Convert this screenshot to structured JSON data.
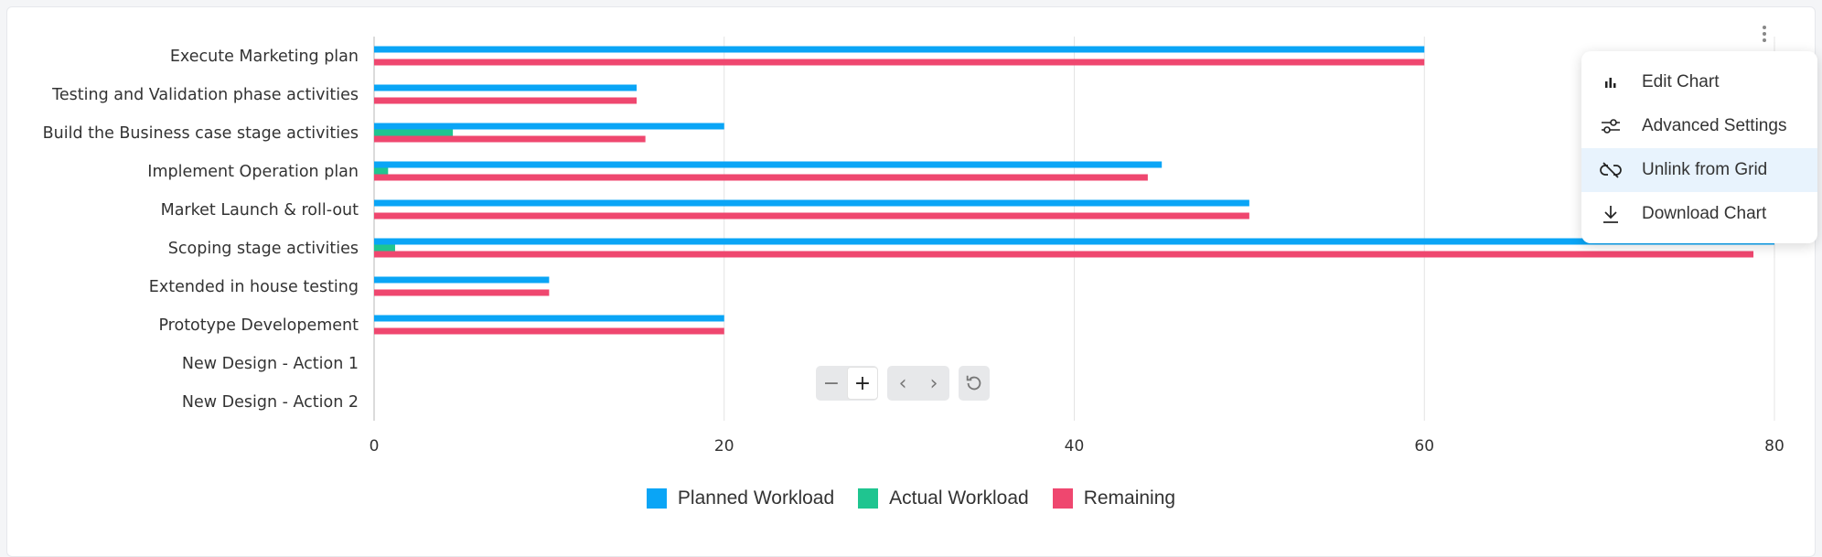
{
  "chart_data": {
    "type": "bar",
    "orientation": "horizontal",
    "categories": [
      "Execute Marketing plan",
      "Testing and Validation phase activities",
      "Build the Business case stage activities",
      "Implement Operation plan",
      "Market Launch & roll-out",
      "Scoping stage activities",
      "Extended in house testing",
      "Prototype Developement",
      "New Design - Action 1",
      "New Design - Action 2"
    ],
    "series": [
      {
        "name": "Planned Workload",
        "color": "#0aa5f6",
        "values": [
          60,
          15,
          20,
          45,
          50,
          80,
          10,
          20,
          0,
          0
        ]
      },
      {
        "name": "Actual Workload",
        "color": "#1fc590",
        "values": [
          0,
          0,
          4.5,
          0.8,
          0,
          1.2,
          0,
          0,
          0,
          0
        ]
      },
      {
        "name": "Remaining",
        "color": "#ef476f",
        "values": [
          60,
          15,
          15.5,
          44.2,
          50,
          78.8,
          10,
          20,
          0,
          0
        ]
      }
    ],
    "x_ticks": [
      "0",
      "20",
      "40",
      "60",
      "80"
    ],
    "xlim": [
      0,
      80
    ],
    "grid": true,
    "legend_position": "bottom"
  },
  "menu": {
    "items": [
      {
        "label": "Edit Chart",
        "icon": "bar-chart-icon"
      },
      {
        "label": "Advanced Settings",
        "icon": "sliders-icon"
      },
      {
        "label": "Unlink from Grid",
        "icon": "unlink-icon"
      },
      {
        "label": "Download Chart",
        "icon": "download-icon"
      }
    ],
    "active_item": "Unlink from Grid"
  },
  "zoom": {
    "zoom_out": "−",
    "zoom_in": "+",
    "pan_left": "‹",
    "pan_right": "›",
    "reset_icon": "reset-icon"
  }
}
